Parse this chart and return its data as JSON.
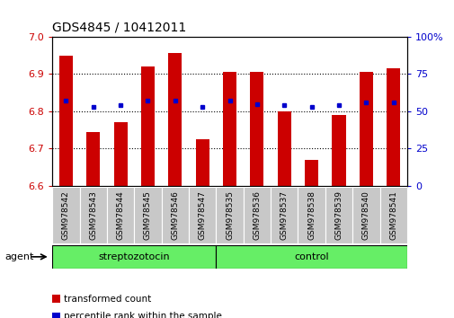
{
  "title": "GDS4845 / 10412011",
  "samples": [
    "GSM978542",
    "GSM978543",
    "GSM978544",
    "GSM978545",
    "GSM978546",
    "GSM978547",
    "GSM978535",
    "GSM978536",
    "GSM978537",
    "GSM978538",
    "GSM978539",
    "GSM978540",
    "GSM978541"
  ],
  "red_values": [
    6.95,
    6.745,
    6.77,
    6.92,
    6.955,
    6.725,
    6.905,
    6.905,
    6.8,
    6.67,
    6.79,
    6.905,
    6.915
  ],
  "blue_values": [
    57,
    53,
    54,
    57,
    57,
    53,
    57,
    55,
    54,
    53,
    54,
    56,
    56
  ],
  "ylim_left": [
    6.6,
    7.0
  ],
  "ylim_right": [
    0,
    100
  ],
  "yticks_left": [
    6.6,
    6.7,
    6.8,
    6.9,
    7.0
  ],
  "yticks_right": [
    0,
    25,
    50,
    75,
    100
  ],
  "ytick_labels_right": [
    "0",
    "25",
    "50",
    "75",
    "100%"
  ],
  "bar_color": "#CC0000",
  "dot_color": "#0000CC",
  "bar_bottom": 6.6,
  "group1_label": "streptozotocin",
  "group2_label": "control",
  "group1_count": 6,
  "group2_count": 7,
  "group_color": "#66EE66",
  "agent_label": "agent",
  "legend_items": [
    {
      "label": "transformed count",
      "color": "#CC0000"
    },
    {
      "label": "percentile rank within the sample",
      "color": "#0000CC"
    }
  ],
  "background_color": "#ffffff",
  "cell_color": "#C8C8C8",
  "bar_width": 0.5,
  "title_fontsize": 10,
  "axis_fontsize": 8,
  "sample_fontsize": 6.5,
  "legend_fontsize": 7.5,
  "group_fontsize": 8
}
